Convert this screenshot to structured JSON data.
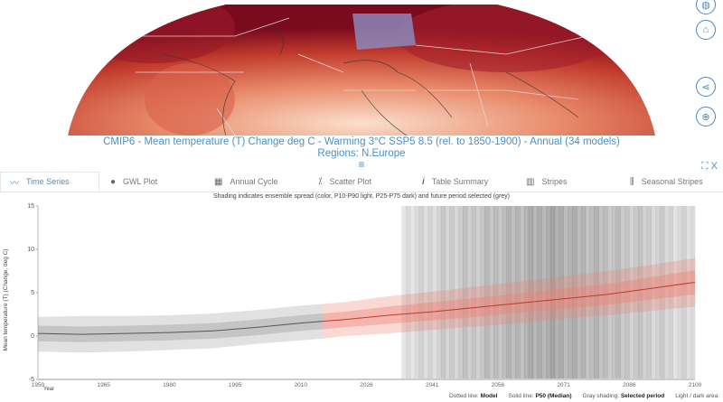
{
  "map": {
    "colors": {
      "dark": "#7a0a1e",
      "mid": "#c0392b",
      "light": "#f6c6a8",
      "highlight": "#8c8fc4"
    }
  },
  "side_buttons": [
    {
      "icon": "globe-icon"
    },
    {
      "icon": "tag-icon"
    },
    {
      "icon": "share-icon"
    },
    {
      "icon": "crosshair-icon"
    }
  ],
  "title": {
    "line1": "CMIP6 - Mean temperature (T) Change deg C - Warming 3°C SSP5 8.5 (rel. to 1850-1900) - Annual (34 models)",
    "line2": "Regions: N.Europe"
  },
  "menu_icon": "≡",
  "tabs": [
    {
      "label": "Time Series",
      "icon": "line-chart-icon",
      "active": true
    },
    {
      "label": "GWL Plot",
      "icon": "globe-icon"
    },
    {
      "label": "Annual Cycle",
      "icon": "calendar-icon"
    },
    {
      "label": "Scatter Plot",
      "icon": "scatter-icon"
    },
    {
      "label": "Table Summary",
      "icon": "info-icon"
    },
    {
      "label": "Stripes",
      "icon": "stripes-icon"
    },
    {
      "label": "Seasonal Stripes",
      "icon": "seasonal-stripes-icon"
    }
  ],
  "chart_data": {
    "type": "line",
    "title": "Shading indicates ensemble spread (color, P10-P90 light, P25-P75 dark) and future period selected (grey)",
    "xlabel": "Year",
    "ylabel": "Mean temperature (T) (Change, deg C)",
    "xlim": [
      1950,
      2100
    ],
    "ylim": [
      -5,
      15
    ],
    "xticks": [
      "1950",
      "1965",
      "1980",
      "1995",
      "2010",
      "2026",
      "2041",
      "2056",
      "2071",
      "2086",
      "2100"
    ],
    "yticks": [
      -5,
      0,
      5,
      10,
      15
    ],
    "selected_period": [
      2033,
      2100
    ],
    "x": [
      1950,
      1960,
      1970,
      1980,
      1990,
      2000,
      2010,
      2015,
      2020,
      2030,
      2040,
      2050,
      2060,
      2070,
      2080,
      2090,
      2100
    ],
    "series": [
      {
        "name": "P50 (Median)",
        "values": [
          0.3,
          0.2,
          0.3,
          0.4,
          0.6,
          1.0,
          1.5,
          1.7,
          1.9,
          2.4,
          2.8,
          3.3,
          3.8,
          4.3,
          4.8,
          5.5,
          6.2
        ]
      },
      {
        "name": "P10",
        "values": [
          -1.8,
          -1.9,
          -1.8,
          -1.6,
          -1.4,
          -0.9,
          -0.5,
          -0.3,
          0.0,
          0.3,
          0.7,
          1.1,
          1.5,
          2.0,
          2.4,
          2.9,
          3.4
        ]
      },
      {
        "name": "P90",
        "values": [
          2.2,
          2.3,
          2.3,
          2.4,
          2.6,
          3.0,
          3.5,
          3.7,
          3.9,
          4.6,
          5.1,
          5.7,
          6.3,
          6.9,
          7.5,
          8.2,
          9.0
        ]
      },
      {
        "name": "P25",
        "values": [
          -0.6,
          -0.7,
          -0.6,
          -0.5,
          -0.3,
          0.1,
          0.6,
          0.8,
          1.0,
          1.4,
          1.8,
          2.2,
          2.7,
          3.1,
          3.6,
          4.2,
          4.8
        ]
      },
      {
        "name": "P75",
        "values": [
          1.2,
          1.1,
          1.2,
          1.3,
          1.5,
          1.9,
          2.4,
          2.6,
          2.8,
          3.4,
          3.9,
          4.4,
          4.9,
          5.5,
          6.0,
          6.8,
          7.6
        ]
      }
    ],
    "colors": {
      "historical": "#9a9a9a",
      "future": "#f08070",
      "median_future": "#c0392b",
      "median_hist": "#555555"
    }
  },
  "legend": {
    "dotted_label": "Dotted line:",
    "dotted_value": "Model",
    "solid_label": "Solid line:",
    "solid_value": "P50 (Median)",
    "gray_label": "Gray shading:",
    "gray_value": "Selected period",
    "area_label": "Light / dark area:"
  },
  "window_controls": {
    "expand": "⛶",
    "close": "X"
  }
}
